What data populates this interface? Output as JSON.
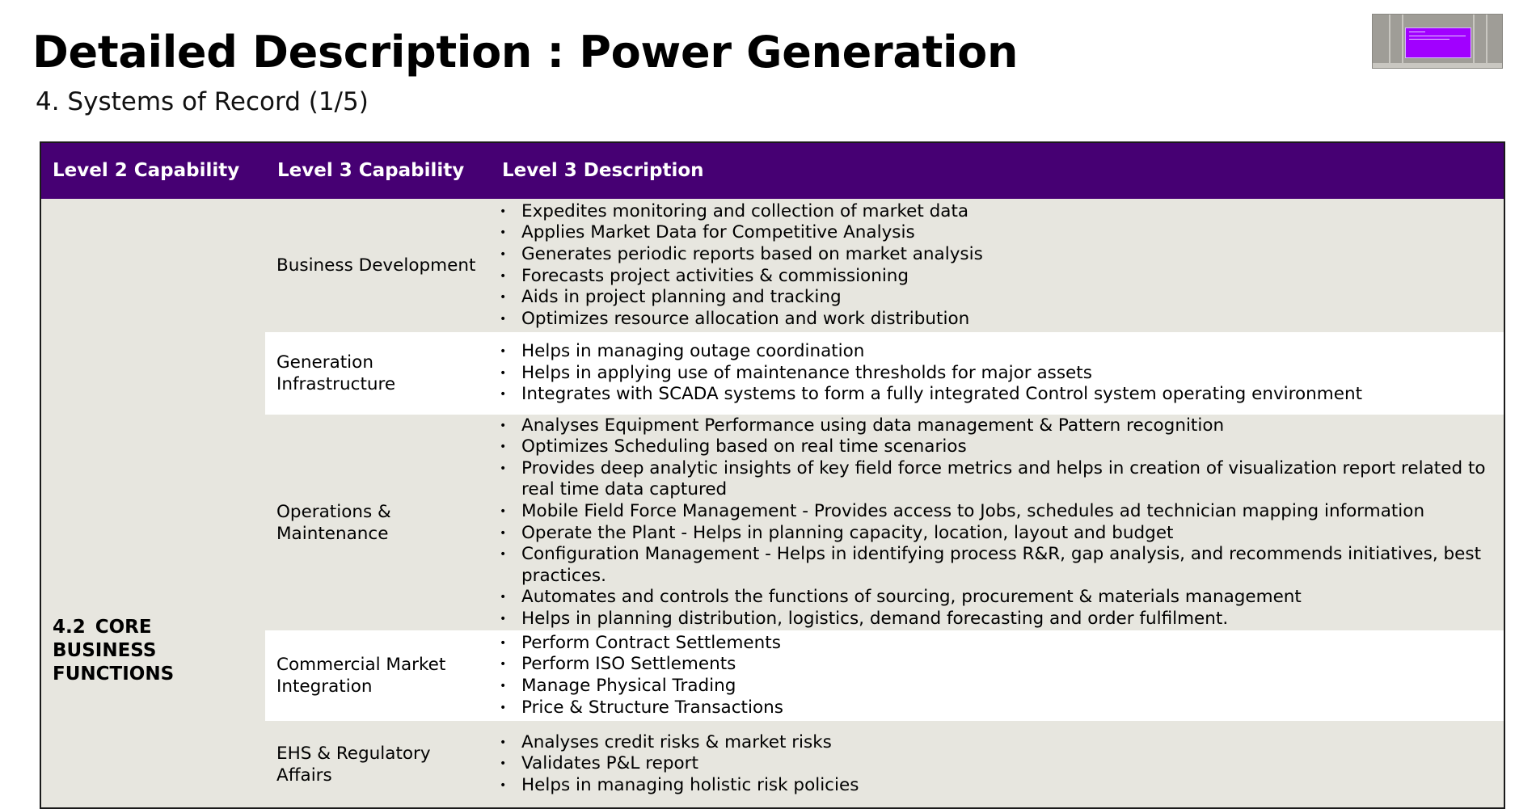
{
  "page": {
    "title": "Detailed Description : Power Generation",
    "subtitle": "4. Systems of Record (1/5)"
  },
  "colors": {
    "header_bg": "#460073",
    "row_shade": "#e7e6df",
    "row_white": "#ffffff",
    "thumbnail_accent": "#a100ff"
  },
  "table": {
    "headers": [
      "Level 2 Capability",
      "Level 3 Capability",
      "Level 3 Description"
    ],
    "level2": "4.2 CORE BUSINESS FUNCTIONS",
    "bullet_glyph": "•",
    "rows": [
      {
        "level3": "Business Development",
        "items": [
          "Expedites monitoring and collection of market data",
          "Applies Market Data for Competitive Analysis",
          "Generates periodic reports based on market analysis",
          "Forecasts project activities & commissioning",
          "Aids in project planning and tracking",
          "Optimizes resource allocation and work distribution"
        ]
      },
      {
        "level3": "Generation Infrastructure",
        "items": [
          "Helps in managing outage coordination",
          "Helps in applying use of maintenance thresholds for major assets",
          "Integrates with SCADA systems to form a fully integrated Control system operating environment"
        ]
      },
      {
        "level3": "Operations & Maintenance",
        "items": [
          "Analyses Equipment Performance using data management & Pattern recognition",
          "Optimizes Scheduling based on real time scenarios",
          "Provides deep analytic insights of key field force metrics and helps in creation of visualization report related to real time data captured",
          "Mobile Field Force Management - Provides access to Jobs, schedules ad technician mapping information",
          "Operate the Plant - Helps in planning capacity, location, layout and budget",
          "Configuration Management - Helps in identifying process R&R, gap analysis, and recommends initiatives, best practices.",
          "Automates and controls the functions of sourcing, procurement & materials management",
          "Helps in planning distribution, logistics, demand forecasting and order fulfilment."
        ]
      },
      {
        "level3": "Commercial Market Integration",
        "items": [
          "Perform Contract Settlements",
          "Perform ISO Settlements",
          "Manage Physical Trading",
          "Price & Structure Transactions"
        ]
      },
      {
        "level3": "EHS & Regulatory Affairs",
        "items": [
          "Analyses credit risks & market risks",
          "Validates P&L report",
          "Helps in managing holistic risk policies"
        ]
      }
    ]
  }
}
